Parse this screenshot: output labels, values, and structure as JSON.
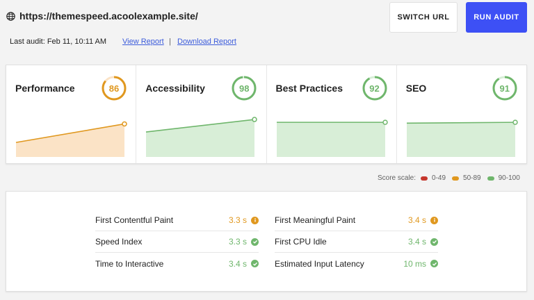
{
  "header": {
    "url": "https://themespeed.acoolexample.site/",
    "last_audit": "Last audit: Feb 11, 10:11 AM",
    "view_report": "View Report",
    "separator": "|",
    "download_report": "Download Report",
    "switch_url": "SWITCH URL",
    "run_audit": "RUN AUDIT",
    "accent_color": "#3d50f5"
  },
  "scores": [
    {
      "title": "Performance",
      "score": "86",
      "value": 86,
      "band": "average",
      "color": "#e0981f",
      "fill": "#fbe3c6",
      "trend": [
        0.36,
        0.82
      ]
    },
    {
      "title": "Accessibility",
      "score": "98",
      "value": 98,
      "band": "pass",
      "color": "#6fb66c",
      "fill": "#d8eed7",
      "trend": [
        0.62,
        0.93
      ]
    },
    {
      "title": "Best Practices",
      "score": "92",
      "value": 92,
      "band": "pass",
      "color": "#6fb66c",
      "fill": "#d8eed7",
      "trend": [
        0.86,
        0.86
      ]
    },
    {
      "title": "SEO",
      "score": "91",
      "value": 91,
      "band": "pass",
      "color": "#6fb66c",
      "fill": "#d8eed7",
      "trend": [
        0.84,
        0.86
      ]
    }
  ],
  "legend": {
    "label": "Score scale:",
    "items": [
      {
        "label": "0-49",
        "color": "#c5372d"
      },
      {
        "label": "50-89",
        "color": "#e0981f"
      },
      {
        "label": "90-100",
        "color": "#6fb66c"
      }
    ]
  },
  "metrics": {
    "left": [
      {
        "label": "First Contentful Paint",
        "value": "3.3 s",
        "status": "average",
        "icon": "info-icon"
      },
      {
        "label": "Speed Index",
        "value": "3.3 s",
        "status": "pass",
        "icon": "check-icon"
      },
      {
        "label": "Time to Interactive",
        "value": "3.4 s",
        "status": "pass",
        "icon": "check-icon"
      }
    ],
    "right": [
      {
        "label": "First Meaningful Paint",
        "value": "3.4 s",
        "status": "average",
        "icon": "info-icon"
      },
      {
        "label": "First CPU Idle",
        "value": "3.4 s",
        "status": "pass",
        "icon": "check-icon"
      },
      {
        "label": "Estimated Input Latency",
        "value": "10 ms",
        "status": "pass",
        "icon": "check-icon"
      }
    ]
  }
}
